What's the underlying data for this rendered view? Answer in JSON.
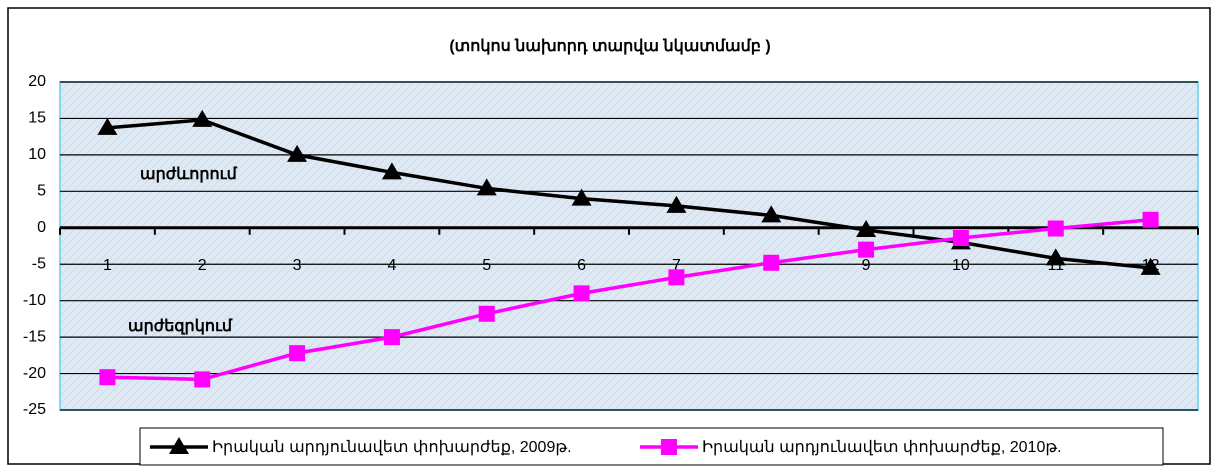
{
  "chart_data": {
    "type": "line",
    "title": "(տոկոս նախորդ տարվա նկատմամբ )",
    "annotations": [
      "արժևորում",
      "արժեզրկում"
    ],
    "categories": [
      "1",
      "2",
      "3",
      "4",
      "5",
      "6",
      "7",
      "8",
      "9",
      "10",
      "11",
      "12"
    ],
    "series": [
      {
        "name": "Իրական արդյունավետ փոխարժեք, 2009թ.",
        "color": "#000000",
        "marker": "triangle",
        "values": [
          13.7,
          14.8,
          10,
          7.6,
          5.4,
          4,
          3,
          1.7,
          -0.3,
          -2,
          -4.2,
          -5.5
        ]
      },
      {
        "name": "Իրական արդյունավետ փոխարժեք, 2010թ.",
        "color": "#ff00ff",
        "marker": "square",
        "values": [
          -20.5,
          -20.8,
          -17.2,
          -15,
          -11.8,
          -9,
          -6.8,
          -4.8,
          -3,
          -1.4,
          -0.1,
          1.1
        ]
      }
    ],
    "ylim": [
      -25,
      20
    ],
    "yticks": [
      -25,
      -20,
      -15,
      -10,
      -5,
      0,
      5,
      10,
      15,
      20
    ],
    "grid": true,
    "legend": "bottom"
  }
}
